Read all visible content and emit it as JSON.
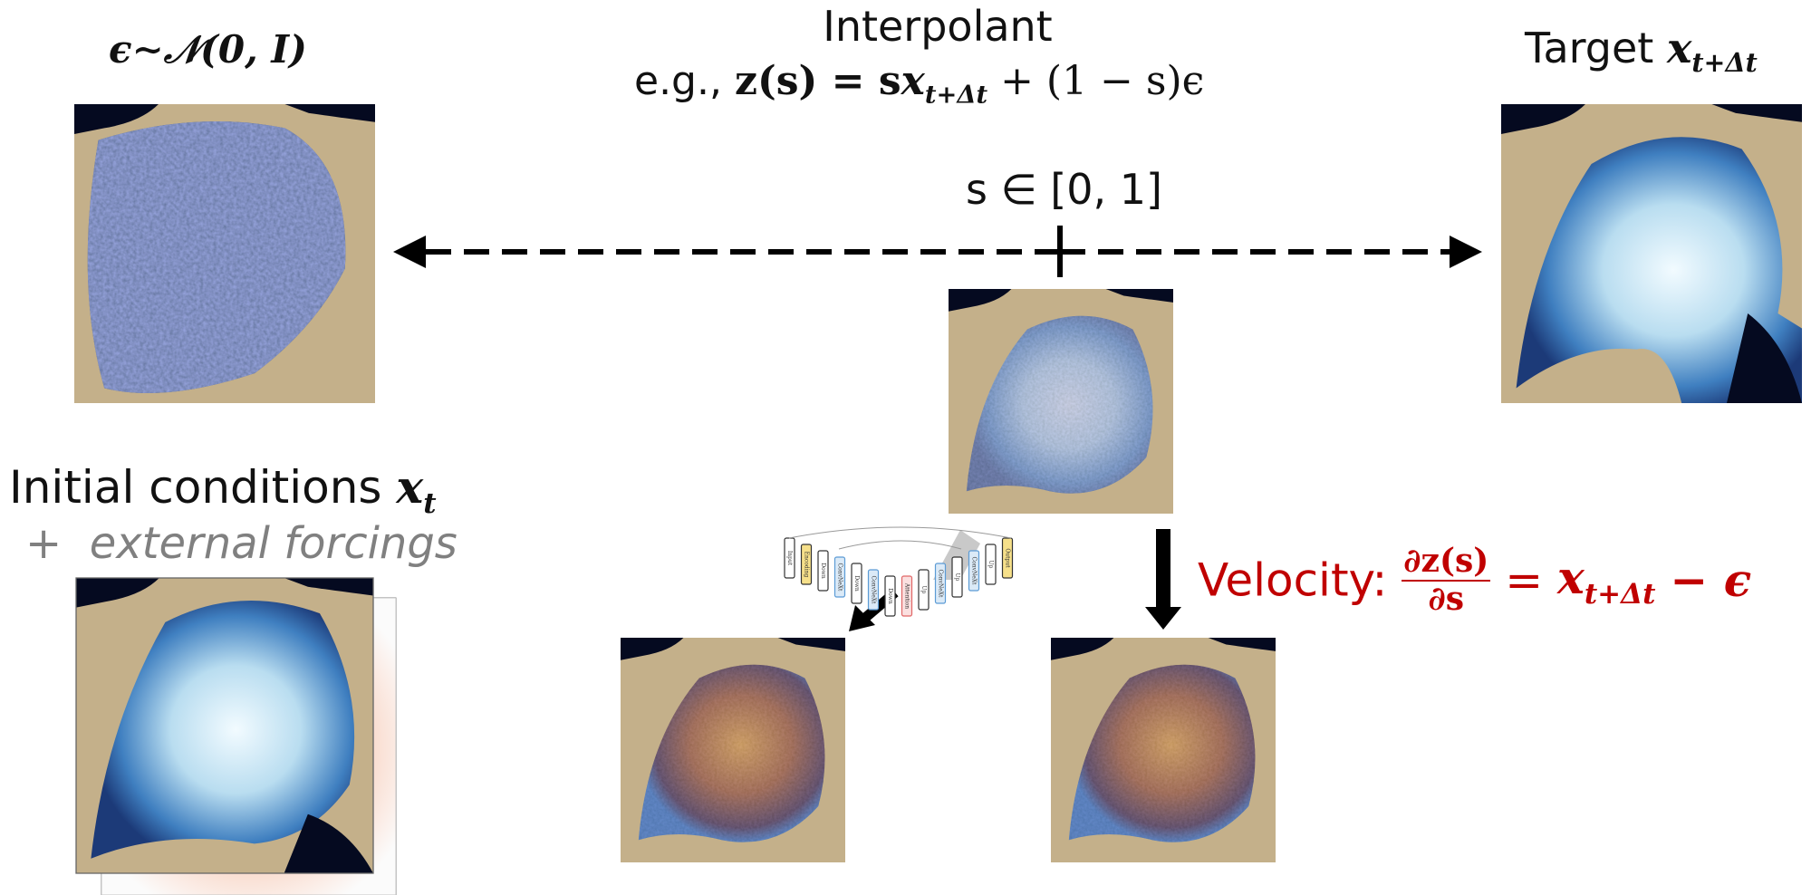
{
  "noise_label": "ϵ∼𝒩(0, I)",
  "interpolant": {
    "title": "Interpolant",
    "prefix": "e.g.,",
    "lhs": "z(s) = s",
    "symbol": "x",
    "subscript": "t+Δt",
    "rest": "+ (1 − s)ϵ"
  },
  "target": {
    "label": "Target",
    "symbol": "x",
    "subscript": "t+Δt"
  },
  "s_range": "s ∈ [0, 1]",
  "initial": {
    "label": "Initial conditions",
    "symbol": "x",
    "subscript": "t"
  },
  "forcings": {
    "plus": "+",
    "text": "external forcings"
  },
  "velocity": {
    "label": "Velocity:",
    "numerator": "∂z(s)",
    "denominator": "∂s",
    "equals": "=",
    "symbol": "x",
    "subscript": "t+Δt",
    "rest": "− ϵ"
  },
  "unet_blocks": [
    "Input",
    "Encoding",
    "Down",
    "ConvNeXt",
    "Down",
    "ConvNeXt",
    "Down",
    "Attention",
    "Up",
    "ConvNeXt",
    "Up",
    "ConvNeXt",
    "Up",
    "Output"
  ]
}
